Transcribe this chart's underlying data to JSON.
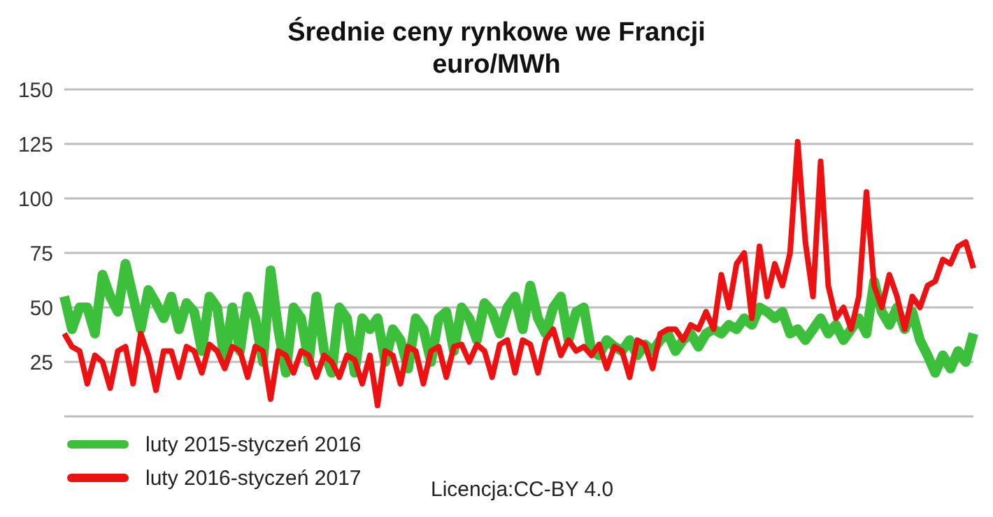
{
  "chart_data": {
    "type": "line",
    "title": "Średnie ceny rynkowe we Francji",
    "subtitle": "euro/MWh",
    "categories": [
      null,
      null,
      null,
      null,
      null,
      null,
      null,
      null,
      null,
      null,
      null,
      null,
      null,
      null,
      null,
      null,
      null,
      null,
      null,
      null,
      null,
      null,
      null,
      null,
      null,
      null,
      null,
      null,
      null,
      null,
      null,
      null,
      null,
      null,
      null,
      null,
      null,
      null,
      null,
      null,
      null,
      null,
      null,
      null,
      null,
      null,
      null,
      null,
      null,
      null,
      null,
      null,
      null,
      null,
      null,
      null,
      null,
      null,
      null,
      null,
      null,
      null,
      null,
      null,
      null,
      null,
      null,
      null,
      null,
      null,
      null,
      null,
      null,
      null,
      null,
      null,
      null,
      null,
      null,
      null,
      null,
      null,
      null,
      null,
      null,
      null,
      null,
      null,
      null,
      null,
      null,
      null,
      null,
      null,
      null,
      null,
      null,
      null,
      null,
      null,
      null,
      null,
      null,
      null,
      null,
      null,
      null,
      null,
      null,
      null,
      null,
      null,
      null,
      null,
      null,
      null,
      null,
      null,
      null,
      null
    ],
    "series": [
      {
        "name": "luty 2015-styczeń 2016",
        "color": "#3cc03c",
        "values": [
          55,
          40,
          50,
          50,
          38,
          65,
          55,
          48,
          70,
          55,
          40,
          58,
          52,
          45,
          55,
          40,
          52,
          48,
          30,
          55,
          50,
          25,
          50,
          30,
          55,
          45,
          25,
          67,
          40,
          20,
          50,
          45,
          25,
          55,
          30,
          20,
          50,
          45,
          20,
          45,
          40,
          45,
          25,
          40,
          35,
          22,
          45,
          40,
          25,
          45,
          48,
          30,
          50,
          45,
          35,
          52,
          48,
          38,
          50,
          55,
          40,
          60,
          45,
          38,
          50,
          55,
          35,
          48,
          50,
          30,
          28,
          35,
          32,
          30,
          35,
          28,
          33,
          30,
          35,
          38,
          30,
          35,
          38,
          32,
          38,
          40,
          38,
          42,
          40,
          45,
          42,
          50,
          48,
          45,
          48,
          38,
          40,
          35,
          40,
          45,
          38,
          42,
          35,
          40,
          45,
          38,
          62,
          48,
          42,
          50,
          40,
          48,
          35,
          28,
          20,
          28,
          22,
          30,
          25,
          38
        ]
      },
      {
        "name": "luty 2016-styczeń 2017",
        "color": "#ee1111",
        "values": [
          38,
          32,
          30,
          15,
          28,
          25,
          13,
          30,
          32,
          15,
          38,
          28,
          12,
          30,
          30,
          18,
          32,
          30,
          20,
          33,
          30,
          22,
          32,
          30,
          18,
          32,
          30,
          8,
          30,
          28,
          20,
          30,
          28,
          18,
          28,
          25,
          18,
          28,
          26,
          15,
          28,
          5,
          30,
          28,
          15,
          32,
          30,
          15,
          30,
          32,
          18,
          32,
          33,
          25,
          33,
          30,
          18,
          33,
          35,
          20,
          35,
          33,
          20,
          35,
          40,
          28,
          35,
          30,
          32,
          28,
          33,
          22,
          32,
          30,
          18,
          35,
          33,
          22,
          38,
          40,
          40,
          35,
          42,
          40,
          48,
          40,
          65,
          50,
          70,
          75,
          45,
          78,
          55,
          70,
          60,
          75,
          126,
          80,
          55,
          117,
          60,
          45,
          50,
          40,
          55,
          103,
          60,
          50,
          65,
          55,
          40,
          55,
          50,
          60,
          62,
          72,
          70,
          78,
          80,
          68
        ]
      }
    ],
    "ylim": [
      0,
      150
    ],
    "yticks": [
      {
        "value": 0,
        "label": null
      },
      25,
      50,
      75,
      100,
      125,
      150
    ],
    "grid": "y",
    "tick_labels": "y",
    "legend": "bottom left",
    "marker": "none",
    "line_style": "solid",
    "annotations": [
      "Licencja:CC-BY 4.0"
    ]
  }
}
